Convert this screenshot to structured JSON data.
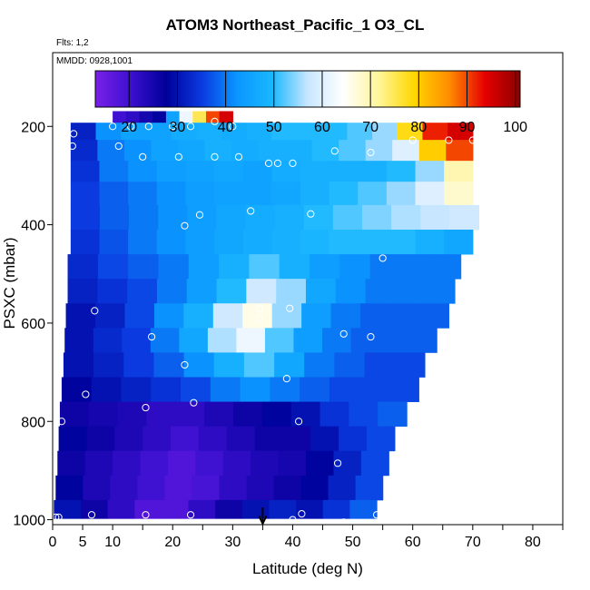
{
  "chart_data": {
    "type": "heatmap",
    "title": "ATOM3 Northeast_Pacific_1 O3_CL",
    "notes": [
      "Flts: 1,2",
      "MMDD: 0928,1001"
    ],
    "xlabel": "Latitude (deg N)",
    "ylabel": "PSXC (mbar)",
    "xlim": [
      0,
      85
    ],
    "ylim": [
      1010,
      50
    ],
    "y_reversed": true,
    "x_ticks": [
      0,
      5,
      10,
      20,
      30,
      40,
      50,
      60,
      70,
      80
    ],
    "x_minor_ticks": [
      15,
      25,
      35,
      45,
      55,
      65,
      75,
      85
    ],
    "y_ticks": [
      200,
      400,
      600,
      800,
      1000
    ],
    "colorbar": {
      "ticks": [
        20,
        30,
        40,
        50,
        60,
        70,
        80,
        90,
        100
      ],
      "range": [
        13,
        101
      ],
      "colors": [
        "#7a20e8",
        "#3c10d0",
        "#00009a",
        "#0a3ae0",
        "#0a96ff",
        "#1ab8ff",
        "#c8e6ff",
        "#ffffff",
        "#fff59a",
        "#ffd700",
        "#ff8c00",
        "#e60000",
        "#8b0000"
      ]
    },
    "rows": [
      {
        "p": 180,
        "x0": 10,
        "x1": 30,
        "values": [
          20,
          22,
          25,
          28,
          45,
          62,
          75,
          90,
          95
        ]
      },
      {
        "p": 205,
        "x0": 3,
        "x1": 70,
        "values": [
          32,
          42,
          45,
          45,
          47,
          48,
          47,
          48,
          50,
          50,
          50,
          52,
          55,
          78,
          92,
          95
        ]
      },
      {
        "p": 250,
        "x0": 3,
        "x1": 70,
        "values": [
          33,
          40,
          42,
          45,
          46,
          48,
          47,
          48,
          48,
          50,
          52,
          55,
          60,
          80,
          90
        ]
      },
      {
        "p": 290,
        "x0": 3,
        "x1": 70,
        "values": [
          34,
          40,
          42,
          44,
          45,
          46,
          45,
          47,
          48,
          48,
          48,
          50,
          55,
          70
        ]
      },
      {
        "p": 335,
        "x0": 3,
        "x1": 70,
        "values": [
          35,
          38,
          40,
          42,
          44,
          45,
          45,
          46,
          48,
          50,
          52,
          55,
          60,
          68
        ]
      },
      {
        "p": 385,
        "x0": 3,
        "x1": 71,
        "values": [
          35,
          38,
          40,
          42,
          44,
          46,
          47,
          48,
          50,
          52,
          54,
          56,
          57,
          58
        ]
      },
      {
        "p": 435,
        "x0": 3,
        "x1": 70,
        "values": [
          34,
          37,
          40,
          42,
          44,
          46,
          47,
          48,
          49,
          50,
          50,
          50,
          48,
          46
        ]
      },
      {
        "p": 485,
        "x0": 2.5,
        "x1": 68,
        "values": [
          33,
          36,
          38,
          40,
          44,
          48,
          52,
          48,
          44,
          42,
          40,
          40,
          40
        ]
      },
      {
        "p": 535,
        "x0": 2.5,
        "x1": 67,
        "values": [
          32,
          34,
          36,
          40,
          44,
          50,
          58,
          55,
          46,
          42,
          40,
          40,
          40
        ]
      },
      {
        "p": 585,
        "x0": 2.2,
        "x1": 66,
        "values": [
          30,
          32,
          36,
          42,
          48,
          58,
          66,
          55,
          44,
          40,
          38,
          38,
          38
        ]
      },
      {
        "p": 635,
        "x0": 2,
        "x1": 64,
        "values": [
          30,
          33,
          35,
          40,
          46,
          56,
          62,
          52,
          44,
          40,
          38,
          38,
          38
        ]
      },
      {
        "p": 685,
        "x0": 1.8,
        "x1": 62,
        "values": [
          30,
          32,
          35,
          38,
          42,
          48,
          52,
          46,
          40,
          38,
          36,
          36
        ]
      },
      {
        "p": 735,
        "x0": 1.5,
        "x1": 61,
        "values": [
          28,
          30,
          32,
          34,
          36,
          40,
          42,
          40,
          38,
          36,
          36,
          36
        ]
      },
      {
        "p": 785,
        "x0": 1.2,
        "x1": 59,
        "values": [
          26,
          25,
          24,
          22,
          22,
          24,
          26,
          28,
          30,
          34,
          36,
          38
        ]
      },
      {
        "p": 835,
        "x0": 1,
        "x1": 57,
        "values": [
          28,
          26,
          24,
          22,
          20,
          22,
          24,
          26,
          26,
          30,
          34,
          36
        ]
      },
      {
        "p": 885,
        "x0": 0.8,
        "x1": 56,
        "values": [
          26,
          24,
          22,
          20,
          18,
          20,
          22,
          24,
          25,
          28,
          32,
          36
        ]
      },
      {
        "p": 935,
        "x0": 0.5,
        "x1": 55,
        "values": [
          28,
          24,
          22,
          20,
          18,
          19,
          22,
          24,
          26,
          28,
          32,
          36
        ]
      },
      {
        "p": 985,
        "x0": 0.2,
        "x1": 54,
        "values": [
          30,
          26,
          22,
          18,
          18,
          22,
          26,
          30,
          32,
          30,
          34,
          38
        ]
      }
    ],
    "sample_points": [
      [
        3.5,
        215
      ],
      [
        3.3,
        240
      ],
      [
        2,
        320
      ],
      [
        10,
        200
      ],
      [
        13,
        200
      ],
      [
        16,
        200
      ],
      [
        20,
        200
      ],
      [
        23,
        200
      ],
      [
        27,
        190
      ],
      [
        30,
        200
      ],
      [
        11,
        240
      ],
      [
        15,
        262
      ],
      [
        21,
        262
      ],
      [
        27,
        262
      ],
      [
        31,
        262
      ],
      [
        36,
        275
      ],
      [
        37.5,
        275
      ],
      [
        40,
        275
      ],
      [
        47,
        250
      ],
      [
        53,
        253
      ],
      [
        60,
        228
      ],
      [
        66,
        228
      ],
      [
        70,
        228
      ],
      [
        22,
        402
      ],
      [
        24.5,
        380
      ],
      [
        33,
        372
      ],
      [
        43,
        378
      ],
      [
        55,
        468
      ],
      [
        7,
        575
      ],
      [
        34.5,
        570
      ],
      [
        34.5,
        590
      ],
      [
        39.5,
        570
      ],
      [
        16.5,
        628
      ],
      [
        48.5,
        622
      ],
      [
        53,
        628
      ],
      [
        22,
        685
      ],
      [
        39,
        713
      ],
      [
        5.5,
        745
      ],
      [
        23.5,
        762
      ],
      [
        15.5,
        772
      ],
      [
        1.5,
        800
      ],
      [
        41,
        800
      ],
      [
        47.5,
        885
      ],
      [
        0.5,
        995
      ],
      [
        1,
        995
      ],
      [
        6.5,
        990
      ],
      [
        15.5,
        990
      ],
      [
        23,
        990
      ],
      [
        40,
        1000
      ],
      [
        41.5,
        988
      ],
      [
        48.5,
        1005
      ],
      [
        54,
        990
      ]
    ],
    "marker_lat": 35
  }
}
